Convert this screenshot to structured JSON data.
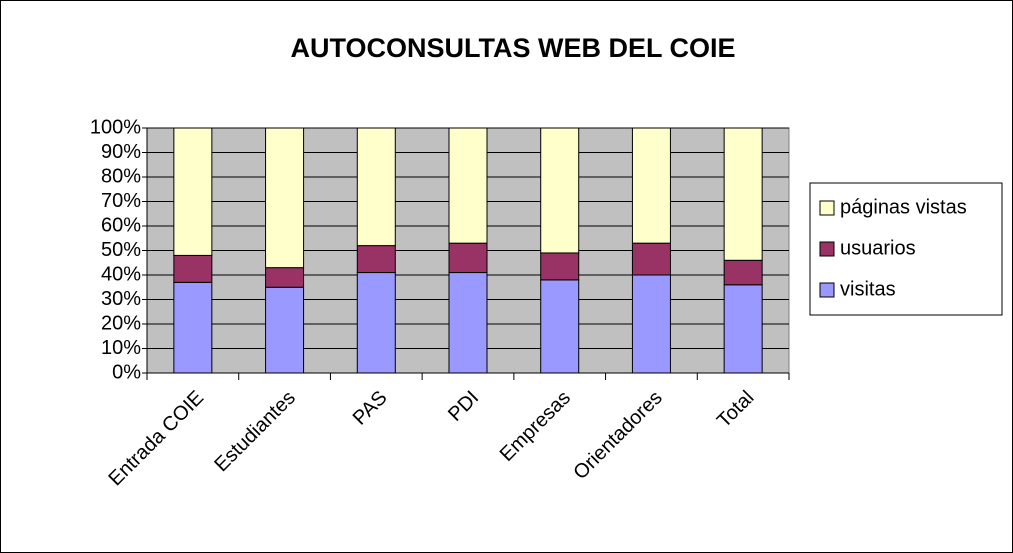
{
  "chart_data": {
    "type": "stacked_bar_100",
    "title": "AUTOCONSULTAS WEB DEL COIE",
    "categories": [
      "Entrada COIE",
      "Estudiantes",
      "PAS",
      "PDI",
      "Empresas",
      "Orientadores",
      "Total"
    ],
    "series": [
      {
        "name": "visitas",
        "color": "#9999ff",
        "values": [
          37,
          35,
          41,
          41,
          38,
          40,
          36
        ]
      },
      {
        "name": "usuarios",
        "color": "#993366",
        "values": [
          11,
          8,
          11,
          12,
          11,
          13,
          10
        ]
      },
      {
        "name": "páginas vistas",
        "color": "#ffffcc",
        "values": [
          52,
          57,
          48,
          47,
          51,
          47,
          54
        ]
      }
    ],
    "ylim": [
      0,
      100
    ],
    "yticks": [
      {
        "value": 0,
        "label": "0%"
      },
      {
        "value": 10,
        "label": "10%"
      },
      {
        "value": 20,
        "label": "20%"
      },
      {
        "value": 30,
        "label": "30%"
      },
      {
        "value": 40,
        "label": "40%"
      },
      {
        "value": 50,
        "label": "50%"
      },
      {
        "value": 60,
        "label": "60%"
      },
      {
        "value": 70,
        "label": "70%"
      },
      {
        "value": 80,
        "label": "80%"
      },
      {
        "value": 90,
        "label": "90%"
      },
      {
        "value": 100,
        "label": "100%"
      }
    ],
    "grid": true,
    "legend": "right"
  }
}
